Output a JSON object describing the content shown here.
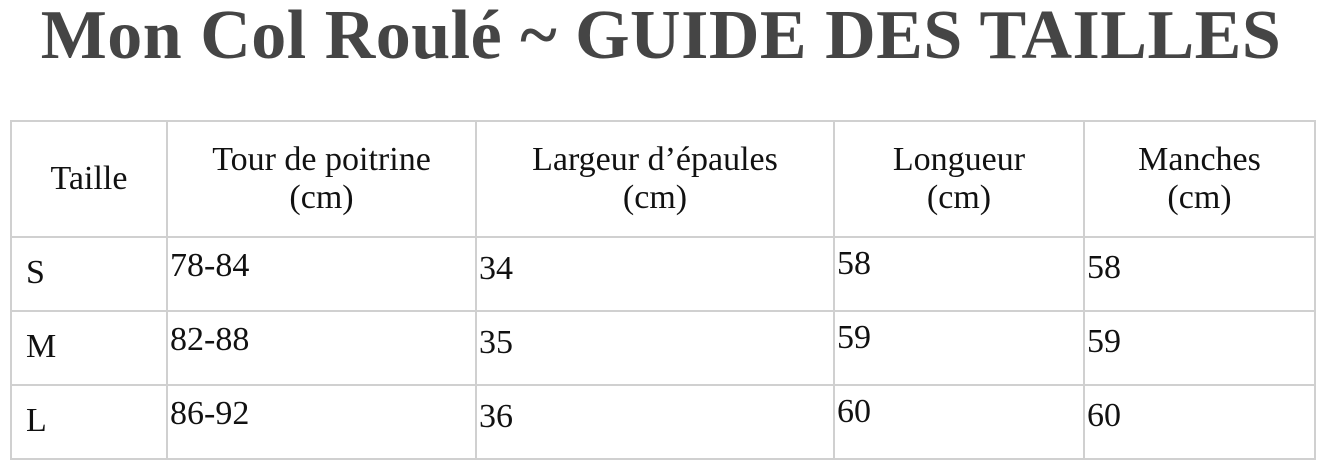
{
  "title": "Mon Col Roulé ~ GUIDE DES TAILLES",
  "table": {
    "headers": [
      {
        "line1": "Taille",
        "line2": ""
      },
      {
        "line1": "Tour de poitrine",
        "line2": "(cm)"
      },
      {
        "line1": "Largeur d’épaules",
        "line2": "(cm)"
      },
      {
        "line1": "Longueur",
        "line2": "(cm)"
      },
      {
        "line1": "Manches",
        "line2": "(cm)"
      }
    ],
    "rows": [
      [
        "S",
        "78-84",
        "34",
        "58",
        "58"
      ],
      [
        "M",
        "82-88",
        "35",
        "59",
        "59"
      ],
      [
        "L",
        "86-92",
        "36",
        "60",
        "60"
      ]
    ]
  }
}
